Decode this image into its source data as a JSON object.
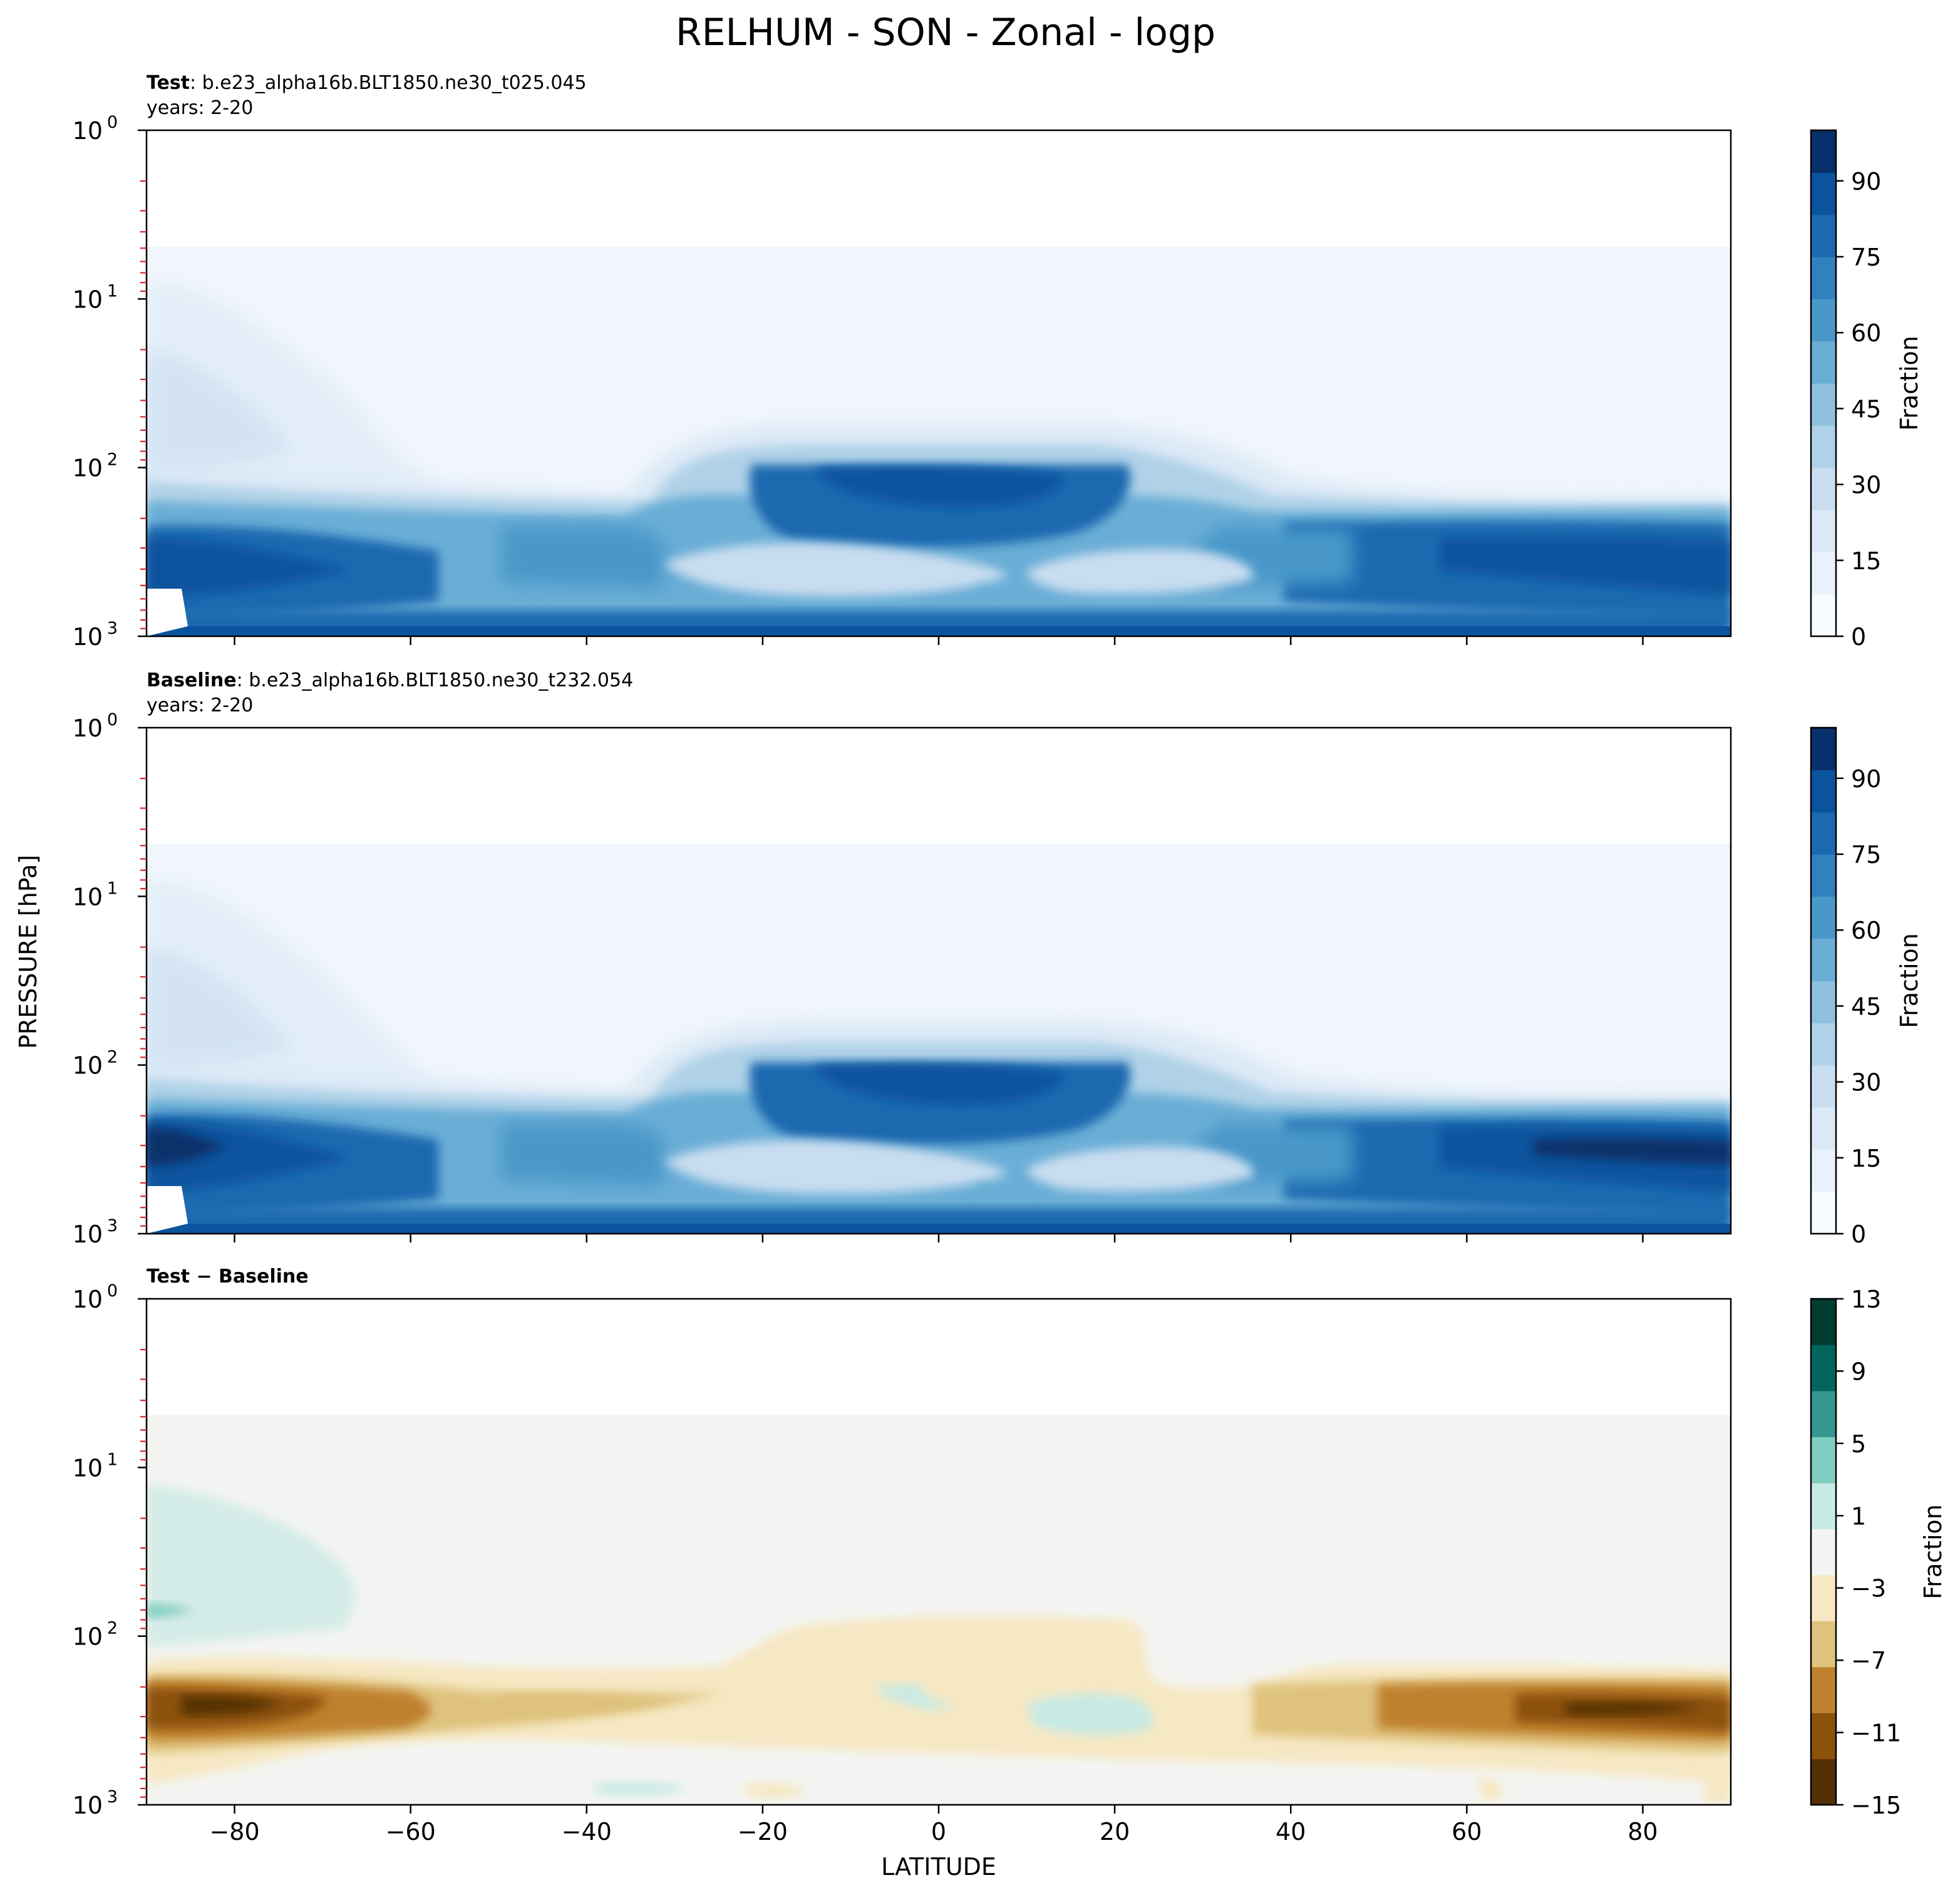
{
  "figure": {
    "title": "RELHUM - SON - Zonal - logp",
    "x_label": "LATITUDE",
    "y_label": "PRESSURE [hPa]"
  },
  "chart_data": [
    {
      "type": "heatmap",
      "label_bold": "Test",
      "label_rest": ": b.e23_alpha16b.BLT1850.ne30_t025.045",
      "subtitle": "years: 2-20",
      "xlim": [
        -90,
        90
      ],
      "ylim_hpa": [
        1000,
        1
      ],
      "y_scale": "log",
      "x_ticks": [
        -80,
        -60,
        -40,
        -20,
        0,
        20,
        40,
        60,
        80
      ],
      "y_ticks": [
        {
          "base": "10",
          "exp": "3"
        },
        {
          "base": "10",
          "exp": "2"
        },
        {
          "base": "10",
          "exp": "1"
        },
        {
          "base": "10",
          "exp": "0"
        }
      ],
      "colorbar": {
        "label": "Fraction",
        "range": [
          0,
          100
        ],
        "ticks": [
          "0",
          "15",
          "30",
          "45",
          "60",
          "75",
          "90"
        ],
        "colormap": "Blues"
      }
    },
    {
      "type": "heatmap",
      "label_bold": "Baseline",
      "label_rest": ": b.e23_alpha16b.BLT1850.ne30_t232.054",
      "subtitle": "years: 2-20",
      "xlim": [
        -90,
        90
      ],
      "ylim_hpa": [
        1000,
        1
      ],
      "y_scale": "log",
      "x_ticks": [
        -80,
        -60,
        -40,
        -20,
        0,
        20,
        40,
        60,
        80
      ],
      "y_ticks": [
        {
          "base": "10",
          "exp": "3"
        },
        {
          "base": "10",
          "exp": "2"
        },
        {
          "base": "10",
          "exp": "1"
        },
        {
          "base": "10",
          "exp": "0"
        }
      ],
      "colorbar": {
        "label": "Fraction",
        "range": [
          0,
          100
        ],
        "ticks": [
          "0",
          "15",
          "30",
          "45",
          "60",
          "75",
          "90"
        ],
        "colormap": "Blues"
      }
    },
    {
      "type": "heatmap",
      "label_bold": "Test − Baseline",
      "label_rest": "",
      "subtitle": "",
      "xlim": [
        -90,
        90
      ],
      "ylim_hpa": [
        1000,
        1
      ],
      "y_scale": "log",
      "x_ticks": [
        -80,
        -60,
        -40,
        -20,
        0,
        20,
        40,
        60,
        80
      ],
      "x_tick_labels": [
        "−80",
        "−60",
        "−40",
        "−20",
        "0",
        "20",
        "40",
        "60",
        "80"
      ],
      "y_ticks": [
        {
          "base": "10",
          "exp": "3"
        },
        {
          "base": "10",
          "exp": "2"
        },
        {
          "base": "10",
          "exp": "1"
        },
        {
          "base": "10",
          "exp": "0"
        }
      ],
      "colorbar": {
        "label": "Fraction",
        "range": [
          -15,
          13
        ],
        "ticks": [
          "−15",
          "−11",
          "−7",
          "−3",
          "1",
          "5",
          "9",
          "13"
        ],
        "colormap": "BrBG"
      }
    }
  ],
  "colors": {
    "blues": [
      "#f7fbff",
      "#e9f2fb",
      "#dbe9f6",
      "#c9ddf0",
      "#b0d2e8",
      "#8fc0de",
      "#6aaed6",
      "#4a98c9",
      "#3181bd",
      "#1c69b0",
      "#0a539e",
      "#08306b"
    ],
    "brbg": [
      "#543005",
      "#8c510a",
      "#bf812d",
      "#dfc27d",
      "#f6e8c3",
      "#f3f4f2",
      "#c7eae5",
      "#80cdc1",
      "#35978f",
      "#01665e",
      "#003c30"
    ],
    "minor_tick": "#d62728"
  }
}
